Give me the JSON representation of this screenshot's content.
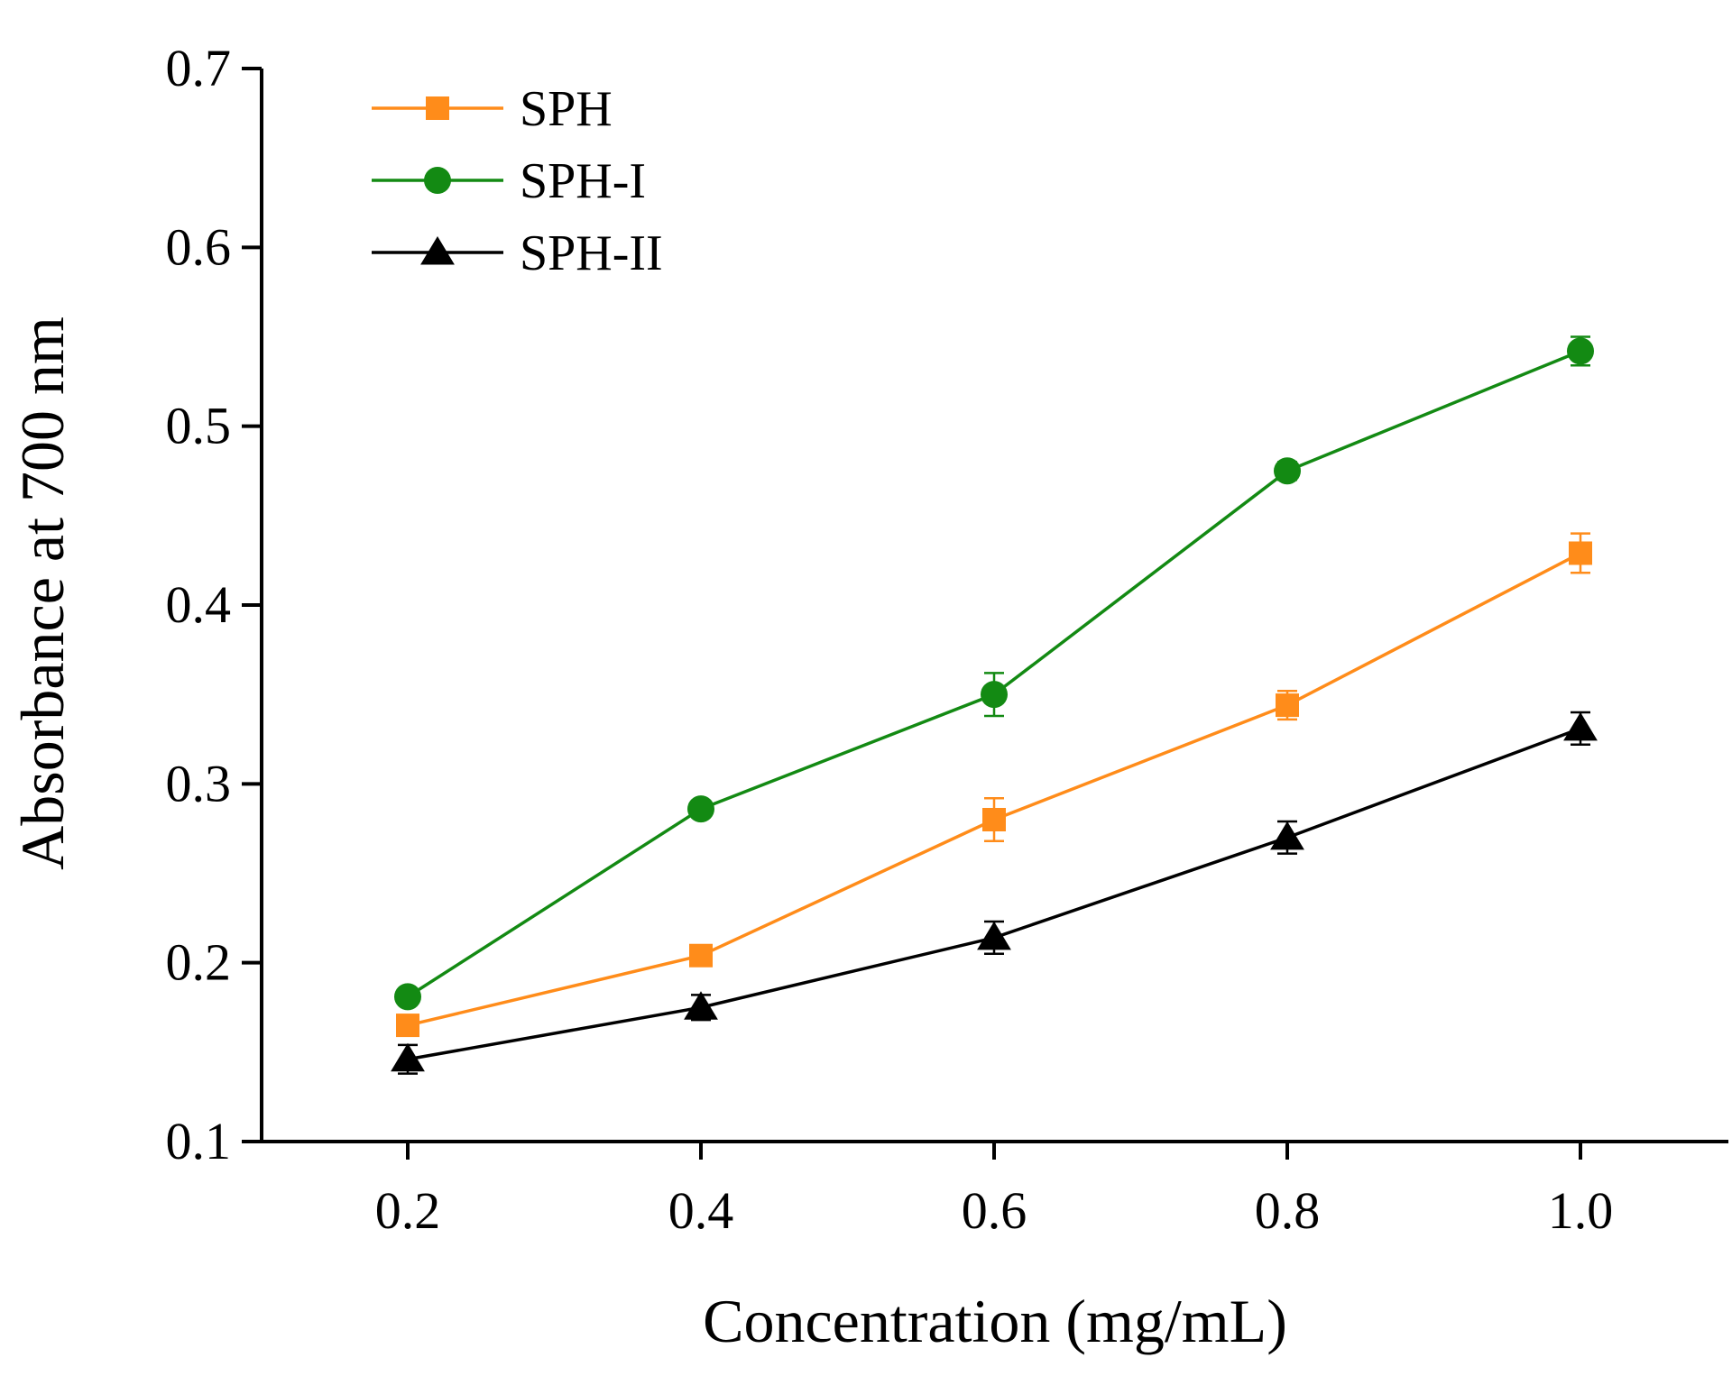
{
  "chart_data": {
    "type": "line",
    "title": "",
    "xlabel": "Concentration (mg/mL)",
    "ylabel": "Absorbance at 700 nm",
    "x": [
      0.2,
      0.4,
      0.6,
      0.8,
      1.0
    ],
    "x_tick_labels": [
      "0.2",
      "0.4",
      "0.6",
      "0.8",
      "1.0"
    ],
    "y_ticks": [
      0.1,
      0.2,
      0.3,
      0.4,
      0.5,
      0.6,
      0.7
    ],
    "y_tick_labels": [
      "0.1",
      "0.2",
      "0.3",
      "0.4",
      "0.5",
      "0.6",
      "0.7"
    ],
    "xlim": [
      0.1,
      1.1
    ],
    "ylim": [
      0.1,
      0.7
    ],
    "grid": false,
    "legend_position": "top-left",
    "series": [
      {
        "name": "SPH",
        "color": "#ff8c1a",
        "marker": "square",
        "values": [
          0.165,
          0.204,
          0.28,
          0.344,
          0.429
        ],
        "errors": [
          0.004,
          0.004,
          0.012,
          0.008,
          0.011
        ]
      },
      {
        "name": "SPH-I",
        "color": "#138a13",
        "marker": "circle",
        "values": [
          0.181,
          0.286,
          0.35,
          0.475,
          0.542
        ],
        "errors": [
          0.004,
          0.004,
          0.012,
          0.005,
          0.008
        ]
      },
      {
        "name": "SPH-II",
        "color": "#000000",
        "marker": "triangle",
        "values": [
          0.146,
          0.175,
          0.214,
          0.27,
          0.331
        ],
        "errors": [
          0.008,
          0.007,
          0.009,
          0.009,
          0.009
        ]
      }
    ]
  }
}
